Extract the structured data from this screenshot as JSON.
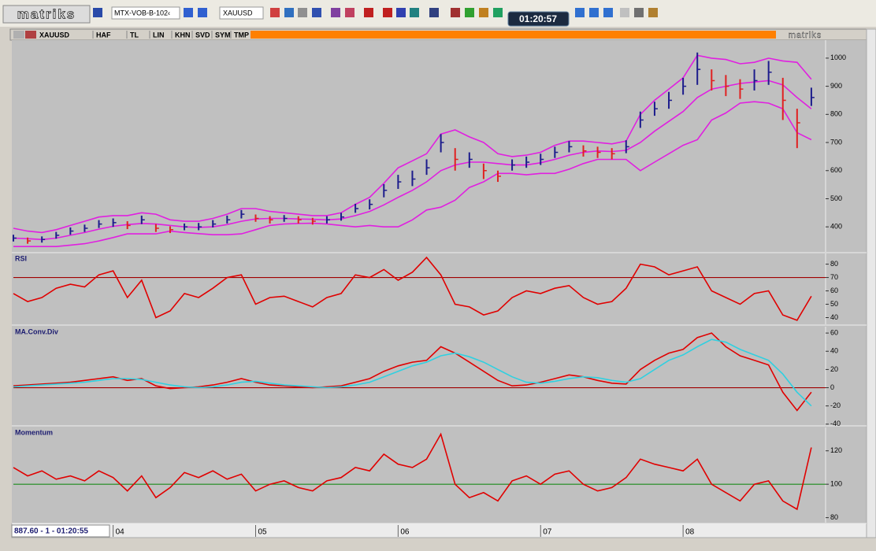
{
  "toolbar": {
    "logo": "matriks",
    "workspace": "MTX-VOB-B-102‹",
    "symbol": "XAUUSD",
    "clock": "01:20:57"
  },
  "tabs": {
    "symbol": "XAUUSD",
    "items": [
      "HAF",
      "TL",
      "LIN",
      "KHN",
      "SVD",
      "SYM",
      "TMP"
    ],
    "brand": "matriks"
  },
  "status": "887.60 - 1 - 01:20:55",
  "chart_data": [
    {
      "type": "ohlc",
      "title": "XAUUSD",
      "x": [
        3.3,
        3.4,
        3.5,
        3.6,
        3.7,
        3.8,
        3.9,
        4.0,
        4.1,
        4.2,
        4.3,
        4.4,
        4.5,
        4.6,
        4.7,
        4.8,
        4.9,
        5.0,
        5.1,
        5.2,
        5.3,
        5.4,
        5.5,
        5.6,
        5.7,
        5.8,
        5.9,
        6.0,
        6.1,
        6.2,
        6.3,
        6.4,
        6.5,
        6.6,
        6.7,
        6.8,
        6.9,
        7.0,
        7.1,
        7.2,
        7.3,
        7.4,
        7.5,
        7.6,
        7.7,
        7.8,
        7.9,
        8.0,
        8.1,
        8.2,
        8.3,
        8.4,
        8.5,
        8.6,
        8.7,
        8.8,
        8.9
      ],
      "xlim": [
        3.3,
        9.0
      ],
      "xticks": [
        {
          "value": 4,
          "label": "04"
        },
        {
          "value": 5,
          "label": "05"
        },
        {
          "value": 6,
          "label": "06"
        },
        {
          "value": 7,
          "label": "07"
        },
        {
          "value": 8,
          "label": "08"
        }
      ],
      "ylim": [
        311,
        1064
      ],
      "yticks": [
        400,
        500,
        600,
        700,
        800,
        900,
        1000
      ],
      "high": [
        372,
        362,
        366,
        382,
        398,
        408,
        424,
        430,
        420,
        440,
        410,
        402,
        412,
        414,
        424,
        440,
        460,
        444,
        438,
        442,
        438,
        432,
        438,
        450,
        482,
        498,
        552,
        585,
        600,
        640,
        730,
        680,
        665,
        625,
        600,
        640,
        650,
        660,
        685,
        705,
        690,
        685,
        680,
        708,
        810,
        845,
        880,
        930,
        1020,
        960,
        940,
        925,
        960,
        990,
        930,
        820,
        895
      ],
      "low": [
        348,
        340,
        344,
        358,
        372,
        382,
        396,
        400,
        392,
        410,
        382,
        378,
        388,
        388,
        398,
        412,
        430,
        418,
        412,
        418,
        412,
        408,
        412,
        422,
        450,
        462,
        505,
        535,
        545,
        585,
        665,
        600,
        610,
        570,
        560,
        600,
        610,
        620,
        645,
        665,
        650,
        645,
        640,
        662,
        752,
        795,
        820,
        870,
        905,
        885,
        865,
        855,
        885,
        905,
        780,
        680,
        830
      ],
      "close": [
        360,
        350,
        355,
        370,
        385,
        395,
        410,
        415,
        405,
        425,
        395,
        390,
        400,
        400,
        410,
        425,
        445,
        430,
        425,
        430,
        425,
        420,
        425,
        435,
        465,
        480,
        530,
        560,
        570,
        610,
        700,
        640,
        640,
        600,
        580,
        620,
        630,
        640,
        665,
        685,
        670,
        665,
        660,
        685,
        780,
        820,
        850,
        900,
        960,
        920,
        900,
        890,
        920,
        950,
        850,
        770,
        860
      ],
      "up_color": "#1c1c8c",
      "down_color": "#e02020",
      "bands": {
        "color": "#e020e0",
        "upper": [
          395,
          385,
          380,
          390,
          405,
          420,
          435,
          440,
          440,
          450,
          445,
          425,
          420,
          420,
          430,
          445,
          465,
          465,
          455,
          450,
          445,
          440,
          440,
          450,
          480,
          505,
          555,
          610,
          635,
          660,
          730,
          745,
          720,
          700,
          660,
          650,
          655,
          665,
          690,
          705,
          705,
          700,
          695,
          705,
          800,
          850,
          890,
          930,
          1010,
          1000,
          995,
          980,
          985,
          1000,
          990,
          985,
          925
        ],
        "middle": [
          360,
          358,
          355,
          360,
          370,
          380,
          392,
          402,
          408,
          412,
          410,
          405,
          400,
          398,
          400,
          408,
          420,
          428,
          430,
          430,
          428,
          427,
          425,
          428,
          440,
          455,
          478,
          505,
          530,
          560,
          600,
          620,
          630,
          630,
          625,
          620,
          620,
          628,
          640,
          655,
          665,
          670,
          668,
          672,
          700,
          740,
          775,
          810,
          860,
          890,
          900,
          910,
          915,
          920,
          905,
          860,
          820
        ],
        "lower": [
          330,
          330,
          330,
          330,
          335,
          340,
          350,
          362,
          375,
          375,
          375,
          385,
          380,
          376,
          372,
          372,
          375,
          390,
          405,
          410,
          412,
          413,
          410,
          405,
          400,
          405,
          400,
          400,
          425,
          460,
          470,
          495,
          540,
          560,
          590,
          590,
          585,
          590,
          590,
          605,
          625,
          640,
          640,
          640,
          600,
          630,
          660,
          690,
          710,
          780,
          805,
          840,
          845,
          840,
          820,
          735,
          710
        ]
      }
    },
    {
      "type": "line",
      "title": "RSI",
      "ylim": [
        35,
        88
      ],
      "yticks": [
        40,
        50,
        60,
        70,
        80
      ],
      "color": "#e00000",
      "reference": {
        "value": 70,
        "color": "#a00000"
      },
      "values": [
        58,
        52,
        55,
        62,
        65,
        63,
        72,
        75,
        55,
        68,
        40,
        45,
        58,
        55,
        62,
        70,
        72,
        50,
        55,
        56,
        52,
        48,
        55,
        58,
        72,
        70,
        76,
        68,
        74,
        85,
        72,
        50,
        48,
        42,
        45,
        55,
        60,
        58,
        62,
        64,
        55,
        50,
        52,
        62,
        80,
        78,
        72,
        75,
        78,
        60,
        55,
        50,
        58,
        60,
        42,
        38,
        56
      ]
    },
    {
      "type": "line",
      "title": "MA.Conv.Div",
      "ylim": [
        -41,
        67
      ],
      "yticks": [
        -40,
        -20,
        0,
        20,
        40,
        60
      ],
      "reference": {
        "value": 0,
        "color": "#a00000"
      },
      "series": [
        {
          "color": "#e00000",
          "values": [
            2,
            3,
            4,
            5,
            6,
            8,
            10,
            12,
            8,
            10,
            2,
            -1,
            0,
            1,
            3,
            6,
            10,
            6,
            3,
            2,
            1,
            0,
            1,
            2,
            6,
            10,
            18,
            24,
            28,
            30,
            45,
            38,
            28,
            18,
            8,
            2,
            3,
            6,
            10,
            14,
            12,
            8,
            5,
            4,
            20,
            30,
            38,
            42,
            55,
            60,
            45,
            35,
            30,
            25,
            -5,
            -25,
            -5
          ]
        },
        {
          "color": "#30d0e0",
          "values": [
            1,
            2,
            3,
            4,
            5,
            6,
            8,
            10,
            10,
            9,
            6,
            3,
            1,
            0,
            1,
            3,
            6,
            7,
            5,
            3,
            2,
            1,
            0,
            1,
            3,
            6,
            12,
            18,
            24,
            28,
            35,
            38,
            34,
            28,
            20,
            12,
            6,
            5,
            7,
            10,
            12,
            11,
            8,
            6,
            10,
            20,
            30,
            36,
            45,
            53,
            50,
            42,
            36,
            30,
            15,
            -5,
            -20
          ]
        }
      ]
    },
    {
      "type": "line",
      "title": "Momentum",
      "ylim": [
        77,
        134
      ],
      "yticks": [
        80,
        100,
        120
      ],
      "color": "#e00000",
      "reference": {
        "value": 100,
        "color": "#1a8a1a"
      },
      "values": [
        110,
        105,
        108,
        103,
        105,
        102,
        108,
        104,
        96,
        105,
        92,
        98,
        107,
        104,
        108,
        103,
        106,
        96,
        100,
        102,
        98,
        96,
        102,
        104,
        110,
        108,
        118,
        112,
        110,
        115,
        130,
        100,
        92,
        95,
        90,
        102,
        105,
        100,
        106,
        108,
        100,
        96,
        98,
        104,
        115,
        112,
        110,
        108,
        115,
        100,
        95,
        90,
        100,
        102,
        90,
        85,
        122
      ]
    }
  ]
}
